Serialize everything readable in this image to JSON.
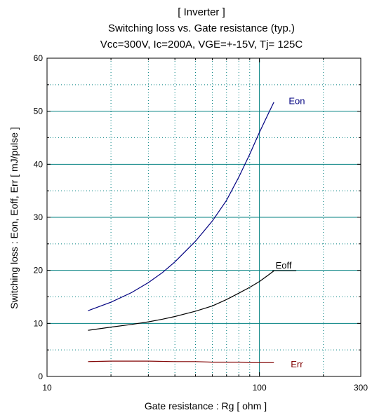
{
  "chart_data": {
    "type": "line",
    "title_lines": [
      "[ Inverter ]",
      "Switching loss  vs.  Gate resistance (typ.)",
      "Vcc=300V, Ic=200A, VGE=+-15V, Tj= 125C"
    ],
    "xlabel": "Gate resistance  :  Rg  [ ohm ]",
    "ylabel": "Switching loss  :  Eon, Eoff, Err  [ mJ/pulse ]",
    "x_scale": "log",
    "xlim": [
      10,
      300
    ],
    "ylim": [
      0,
      60
    ],
    "x_ticks": [
      10,
      100,
      300
    ],
    "x_tick_labels": [
      "10",
      "100",
      "300"
    ],
    "y_ticks": [
      0,
      10,
      20,
      30,
      40,
      50,
      60
    ],
    "y_tick_labels": [
      "0",
      "10",
      "20",
      "30",
      "40",
      "50",
      "60"
    ],
    "grid": true,
    "series": [
      {
        "name": "Eon",
        "color": "#000080",
        "x": [
          15.6,
          20,
          25,
          30,
          35,
          40,
          50,
          60,
          70,
          80,
          90,
          100,
          110,
          117
        ],
        "y": [
          12.4,
          14.0,
          15.8,
          17.7,
          19.6,
          21.6,
          25.5,
          29.3,
          33.2,
          37.6,
          41.9,
          46.0,
          49.5,
          51.7
        ]
      },
      {
        "name": "Eoff",
        "color": "#000000",
        "x": [
          15.6,
          20,
          25,
          30,
          35,
          40,
          50,
          60,
          70,
          80,
          90,
          100,
          110,
          117
        ],
        "y": [
          8.7,
          9.3,
          9.8,
          10.3,
          10.8,
          11.3,
          12.3,
          13.3,
          14.5,
          15.7,
          16.8,
          17.9,
          19.1,
          19.9
        ]
      },
      {
        "name": "Err",
        "color": "#800000",
        "x": [
          15.6,
          20,
          25,
          30,
          40,
          50,
          60,
          70,
          80,
          90,
          100,
          117
        ],
        "y": [
          2.8,
          2.9,
          2.9,
          2.9,
          2.8,
          2.8,
          2.7,
          2.7,
          2.7,
          2.6,
          2.6,
          2.6
        ]
      }
    ],
    "legend_labels": [
      {
        "name": "Eon",
        "x": 150,
        "y": 52.0
      },
      {
        "name": "Eoff",
        "x": 130,
        "y": 21.0
      },
      {
        "name": "Err",
        "x": 150,
        "y": 2.4
      }
    ]
  }
}
